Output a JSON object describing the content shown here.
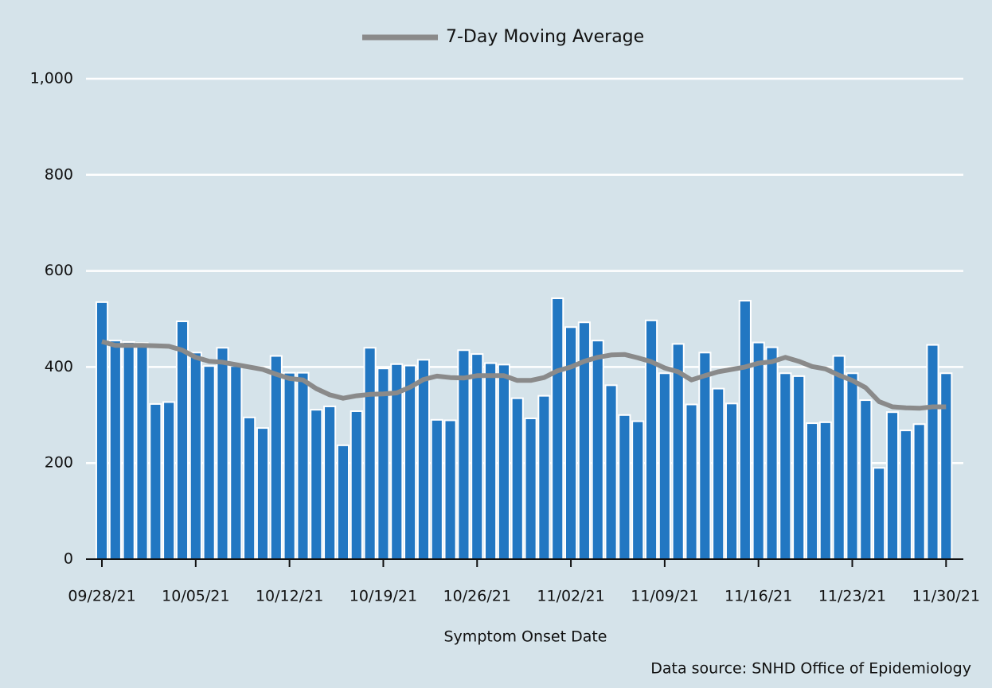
{
  "chart_data": {
    "type": "bar",
    "x_label": "Symptom Onset Date",
    "source": "Data source: SNHD Office of Epidemiology",
    "categories": [
      "09/28/21",
      null,
      null,
      null,
      null,
      null,
      null,
      "10/05/21",
      null,
      null,
      null,
      null,
      null,
      null,
      "10/12/21",
      null,
      null,
      null,
      null,
      null,
      null,
      "10/19/21",
      null,
      null,
      null,
      null,
      null,
      null,
      "10/26/21",
      null,
      null,
      null,
      null,
      null,
      null,
      "11/02/21",
      null,
      null,
      null,
      null,
      null,
      null,
      "11/09/21",
      null,
      null,
      null,
      null,
      null,
      null,
      "11/16/21",
      null,
      null,
      null,
      null,
      null,
      null,
      "11/23/21",
      null,
      null,
      null,
      null,
      null,
      null,
      "11/30/21"
    ],
    "series": [
      {
        "type": "bar",
        "color": "#2277c2",
        "values": [
          535,
          455,
          452,
          450,
          323,
          327,
          495,
          430,
          402,
          440,
          402,
          295,
          273,
          423,
          388,
          388,
          311,
          318,
          237,
          308,
          440,
          397,
          406,
          403,
          415,
          290,
          289,
          435,
          427,
          408,
          405,
          335,
          293,
          340,
          543,
          483,
          493,
          455,
          362,
          300,
          287,
          497,
          387,
          448,
          322,
          430,
          355,
          324,
          538,
          451,
          441,
          387,
          381,
          283,
          285,
          423,
          387,
          331,
          190,
          306,
          268,
          281,
          446,
          387
        ]
      },
      {
        "type": "line",
        "name": "7-Day Moving Average",
        "color": "#8a8a8a",
        "values": [
          453,
          445,
          445,
          445,
          444,
          443,
          435,
          420,
          412,
          410,
          405,
          400,
          395,
          385,
          376,
          373,
          355,
          342,
          335,
          340,
          343,
          344,
          346,
          358,
          374,
          381,
          378,
          377,
          382,
          382,
          382,
          372,
          372,
          378,
          392,
          400,
          412,
          420,
          425,
          426,
          419,
          411,
          398,
          390,
          373,
          382,
          390,
          395,
          400,
          408,
          411,
          420,
          412,
          401,
          396,
          383,
          372,
          357,
          328,
          317,
          315,
          314,
          317,
          317
        ]
      }
    ],
    "ylim": [
      0,
      1000
    ],
    "yticks": [
      0,
      200,
      400,
      600,
      800,
      {
        "value": 1000,
        "label": "1,000"
      }
    ],
    "grid": true
  }
}
